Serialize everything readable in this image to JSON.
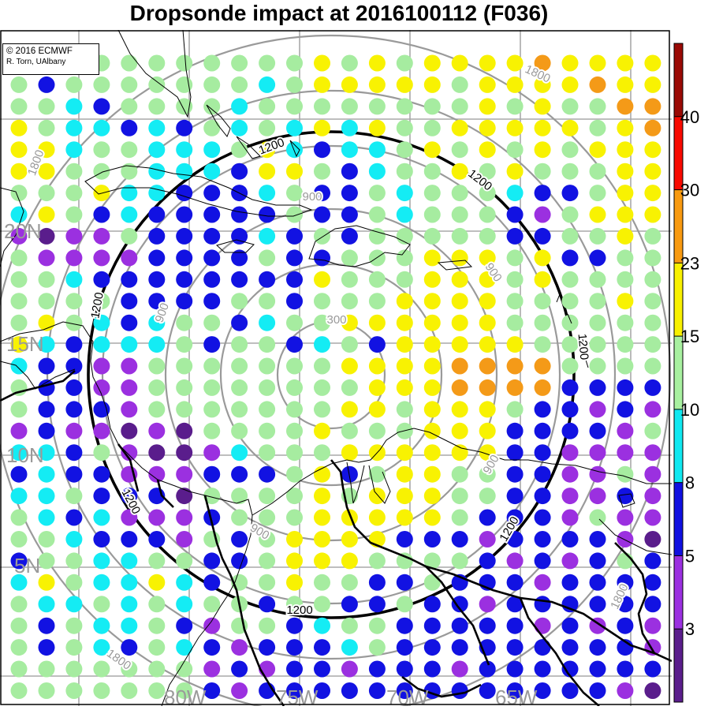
{
  "title": "Dropsonde impact at 2016100112 (F036)",
  "credit": {
    "line1": "© 2016 ECMWF",
    "line2": "R. Torn, UAlbany"
  },
  "lat_labels": [
    "20N",
    "15N",
    "10N",
    "5N"
  ],
  "lon_labels": [
    "80W",
    "75W",
    "70W",
    "65W"
  ],
  "range_ring_labels": [
    "300",
    "900",
    "1200",
    "1800"
  ],
  "colorbar": {
    "ticks": [
      "3",
      "5",
      "8",
      "10",
      "15",
      "23",
      "30",
      "40"
    ],
    "colors": [
      "#5a1d8c",
      "#9b30e0",
      "#1010e0",
      "#10e8f0",
      "#a8f0a0",
      "#f8f000",
      "#f89a10",
      "#f80a00",
      "#9a0a05"
    ]
  },
  "map_colors": {
    "dark_purple": "#5a1d8c",
    "purple": "#9b30e0",
    "blue": "#1212e2",
    "cyan": "#14ecf4",
    "green": "#a6eca0",
    "yellow": "#f8f202",
    "orange": "#f49a18"
  }
}
